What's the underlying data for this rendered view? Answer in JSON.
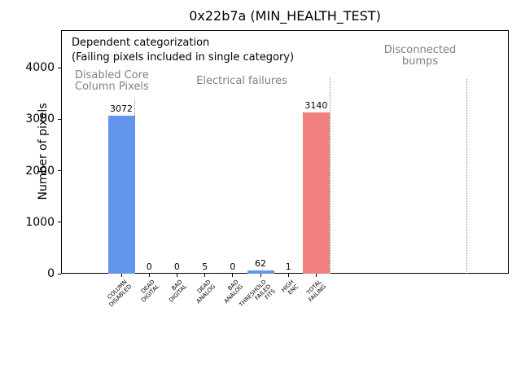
{
  "chart_data": {
    "type": "bar",
    "title": "0x22b7a (MIN_HEALTH_TEST)",
    "xlabel": "",
    "ylabel": "Number of pixels",
    "ylim": [
      0,
      4730
    ],
    "yticks": [
      0,
      1000,
      2000,
      3000,
      4000
    ],
    "grid": false,
    "legend": null,
    "categories": [
      "COLUMN\nDISABLED",
      "DEAD\nDIGITAL",
      "BAD\nDIGITAL",
      "DEAD\nANALOG",
      "BAD\nANALOG",
      "THRESHOLD\nFAILED\nFITS",
      "HIGH\nENC",
      "TOTAL\nFAILING"
    ],
    "values": [
      3072,
      0,
      0,
      5,
      0,
      62,
      1,
      3140
    ],
    "bar_colors": [
      "#6495ed",
      "#6495ed",
      "#6495ed",
      "#6495ed",
      "#6495ed",
      "#6495ed",
      "#6495ed",
      "#f08080"
    ],
    "value_labels": [
      "3072",
      "0",
      "0",
      "5",
      "0",
      "62",
      "1",
      "3140"
    ],
    "annotations": {
      "heading": "Dependent categorization",
      "subheading": "(Failing pixels included in single category)",
      "groups": [
        {
          "label": "Disabled Core\nColumn Pixels"
        },
        {
          "label": "Electrical failures"
        },
        {
          "label": "Disconnected\nbumps"
        }
      ]
    },
    "colors": {
      "default_bar": "#6495ed",
      "total_bar": "#f08080",
      "group_text": "#808080",
      "separator": "#888888"
    }
  }
}
